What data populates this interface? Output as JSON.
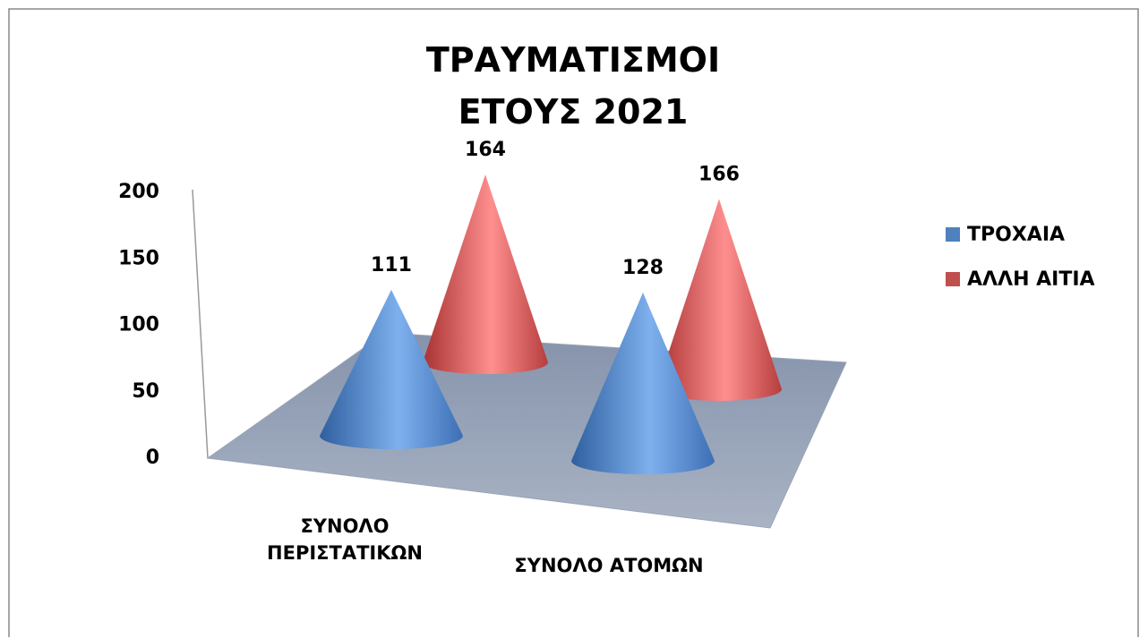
{
  "chart_data": {
    "type": "cone3d",
    "title": "ΤΡΑΥΜΑΤΙΣΜΟΙ ΕΤΟΥΣ 2021",
    "categories": [
      "ΣΥΝΟΛΟ ΠΕΡΙΣΤΑΤΙΚΩΝ",
      "ΣΥΝΟΛΟ ΑΤΟΜΩΝ"
    ],
    "series": [
      {
        "name": "ΤΡΟΧΑΙΑ",
        "color": "#4f81bd",
        "values": [
          111,
          128
        ]
      },
      {
        "name": "ΑΛΛΗ ΑΙΤΙΑ",
        "color": "#c0504d",
        "values": [
          164,
          166
        ]
      }
    ],
    "ylim": [
      0,
      200
    ],
    "yticks": [
      0,
      50,
      100,
      150,
      200
    ],
    "legend": "right"
  }
}
